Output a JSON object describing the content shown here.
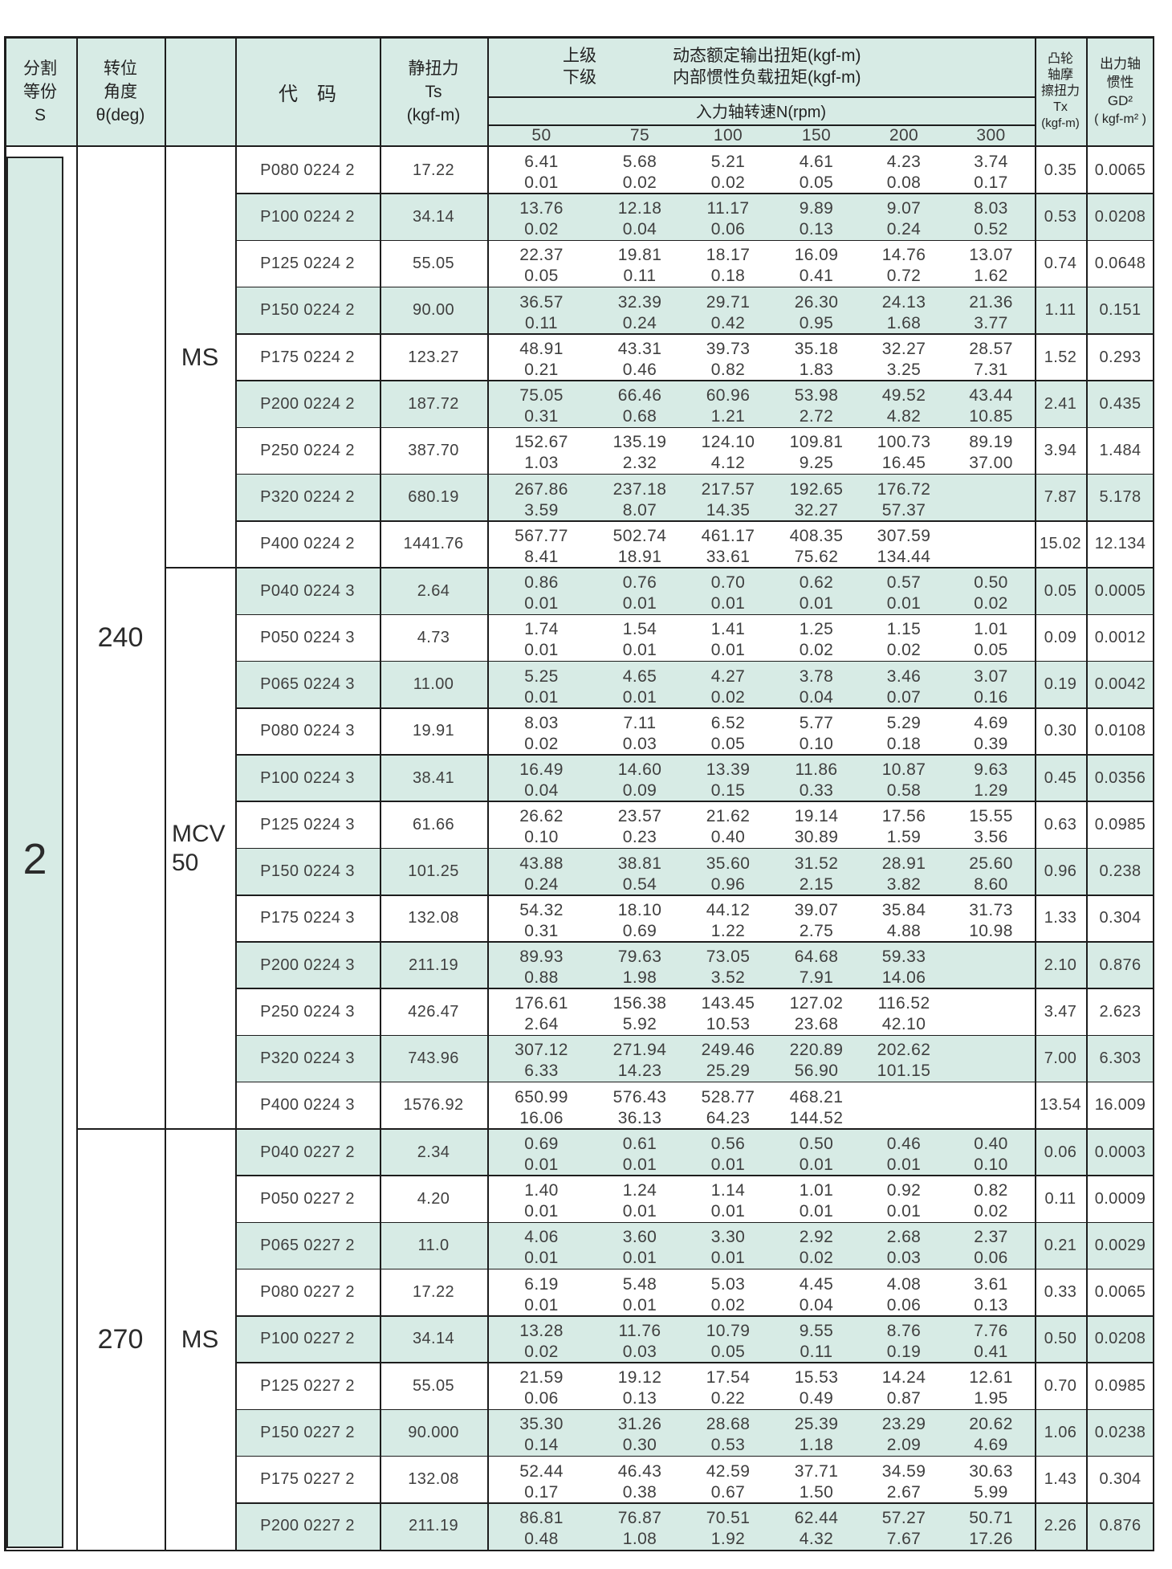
{
  "header": {
    "division_label_lines": [
      "分割",
      "等份",
      "S"
    ],
    "angle_label_lines": [
      "转位",
      "角度",
      "θ(deg)"
    ],
    "code_label": "代　码",
    "static_torque_lines": [
      "静扭力",
      "Ts",
      "(kgf-m)"
    ],
    "upper_label": "上级",
    "lower_label": "下级",
    "dynamic_torque_line1": "动态额定输出扭矩(kgf-m)",
    "dynamic_torque_line2": "内部惯性负载扭矩(kgf-m)",
    "input_speed_label": "入力轴转速N(rpm)",
    "speeds": [
      "50",
      "75",
      "100",
      "150",
      "200",
      "300"
    ],
    "cam_friction_lines": [
      "凸轮",
      "轴摩",
      "擦扭力",
      "Tx",
      "(kgf-m)"
    ],
    "output_inertia_lines": [
      "出力轴",
      "惯性",
      "GD²",
      "( kgf-m² )"
    ]
  },
  "left": {
    "division_value": "2",
    "angle_groups": [
      {
        "angle": "240"
      },
      {
        "angle": "270"
      }
    ],
    "type_groups": [
      {
        "label": "MS"
      },
      {
        "label_lines": [
          "MCV",
          "50"
        ]
      },
      {
        "label": "MS"
      }
    ]
  },
  "rows": [
    {
      "code": "P080 0224 2",
      "ts": "17.22",
      "values": [
        [
          "6.41",
          "0.01"
        ],
        [
          "5.68",
          "0.02"
        ],
        [
          "5.21",
          "0.02"
        ],
        [
          "4.61",
          "0.05"
        ],
        [
          "4.23",
          "0.08"
        ],
        [
          "3.74",
          "0.17"
        ]
      ],
      "tx": "0.35",
      "gd": "0.0065"
    },
    {
      "code": "P100 0224 2",
      "ts": "34.14",
      "values": [
        [
          "13.76",
          "0.02"
        ],
        [
          "12.18",
          "0.04"
        ],
        [
          "11.17",
          "0.06"
        ],
        [
          "9.89",
          "0.13"
        ],
        [
          "9.07",
          "0.24"
        ],
        [
          "8.03",
          "0.52"
        ]
      ],
      "tx": "0.53",
      "gd": "0.0208"
    },
    {
      "code": "P125 0224 2",
      "ts": "55.05",
      "values": [
        [
          "22.37",
          "0.05"
        ],
        [
          "19.81",
          "0.11"
        ],
        [
          "18.17",
          "0.18"
        ],
        [
          "16.09",
          "0.41"
        ],
        [
          "14.76",
          "0.72"
        ],
        [
          "13.07",
          "1.62"
        ]
      ],
      "tx": "0.74",
      "gd": "0.0648"
    },
    {
      "code": "P150 0224 2",
      "ts": "90.00",
      "values": [
        [
          "36.57",
          "0.11"
        ],
        [
          "32.39",
          "0.24"
        ],
        [
          "29.71",
          "0.42"
        ],
        [
          "26.30",
          "0.95"
        ],
        [
          "24.13",
          "1.68"
        ],
        [
          "21.36",
          "3.77"
        ]
      ],
      "tx": "1.11",
      "gd": "0.151"
    },
    {
      "code": "P175 0224 2",
      "ts": "123.27",
      "values": [
        [
          "48.91",
          "0.21"
        ],
        [
          "43.31",
          "0.46"
        ],
        [
          "39.73",
          "0.82"
        ],
        [
          "35.18",
          "1.83"
        ],
        [
          "32.27",
          "3.25"
        ],
        [
          "28.57",
          "7.31"
        ]
      ],
      "tx": "1.52",
      "gd": "0.293"
    },
    {
      "code": "P200 0224 2",
      "ts": "187.72",
      "values": [
        [
          "75.05",
          "0.31"
        ],
        [
          "66.46",
          "0.68"
        ],
        [
          "60.96",
          "1.21"
        ],
        [
          "53.98",
          "2.72"
        ],
        [
          "49.52",
          "4.82"
        ],
        [
          "43.44",
          "10.85"
        ]
      ],
      "tx": "2.41",
      "gd": "0.435"
    },
    {
      "code": "P250 0224 2",
      "ts": "387.70",
      "values": [
        [
          "152.67",
          "1.03"
        ],
        [
          "135.19",
          "2.32"
        ],
        [
          "124.10",
          "4.12"
        ],
        [
          "109.81",
          "9.25"
        ],
        [
          "100.73",
          "16.45"
        ],
        [
          "89.19",
          "37.00"
        ]
      ],
      "tx": "3.94",
      "gd": "1.484"
    },
    {
      "code": "P320 0224 2",
      "ts": "680.19",
      "values": [
        [
          "267.86",
          "3.59"
        ],
        [
          "237.18",
          "8.07"
        ],
        [
          "217.57",
          "14.35"
        ],
        [
          "192.65",
          "32.27"
        ],
        [
          "176.72",
          "57.37"
        ],
        null
      ],
      "tx": "7.87",
      "gd": "5.178"
    },
    {
      "code": "P400 0224 2",
      "ts": "1441.76",
      "values": [
        [
          "567.77",
          "8.41"
        ],
        [
          "502.74",
          "18.91"
        ],
        [
          "461.17",
          "33.61"
        ],
        [
          "408.35",
          "75.62"
        ],
        [
          "307.59",
          "134.44"
        ],
        null
      ],
      "tx": "15.02",
      "gd": "12.134"
    },
    {
      "code": "P040 0224 3",
      "ts": "2.64",
      "values": [
        [
          "0.86",
          "0.01"
        ],
        [
          "0.76",
          "0.01"
        ],
        [
          "0.70",
          "0.01"
        ],
        [
          "0.62",
          "0.01"
        ],
        [
          "0.57",
          "0.01"
        ],
        [
          "0.50",
          "0.02"
        ]
      ],
      "tx": "0.05",
      "gd": "0.0005"
    },
    {
      "code": "P050 0224 3",
      "ts": "4.73",
      "values": [
        [
          "1.74",
          "0.01"
        ],
        [
          "1.54",
          "0.01"
        ],
        [
          "1.41",
          "0.01"
        ],
        [
          "1.25",
          "0.02"
        ],
        [
          "1.15",
          "0.02"
        ],
        [
          "1.01",
          "0.05"
        ]
      ],
      "tx": "0.09",
      "gd": "0.0012"
    },
    {
      "code": "P065 0224 3",
      "ts": "11.00",
      "values": [
        [
          "5.25",
          "0.01"
        ],
        [
          "4.65",
          "0.01"
        ],
        [
          "4.27",
          "0.02"
        ],
        [
          "3.78",
          "0.04"
        ],
        [
          "3.46",
          "0.07"
        ],
        [
          "3.07",
          "0.16"
        ]
      ],
      "tx": "0.19",
      "gd": "0.0042"
    },
    {
      "code": "P080 0224 3",
      "ts": "19.91",
      "values": [
        [
          "8.03",
          "0.02"
        ],
        [
          "7.11",
          "0.03"
        ],
        [
          "6.52",
          "0.05"
        ],
        [
          "5.77",
          "0.10"
        ],
        [
          "5.29",
          "0.18"
        ],
        [
          "4.69",
          "0.39"
        ]
      ],
      "tx": "0.30",
      "gd": "0.0108"
    },
    {
      "code": "P100 0224 3",
      "ts": "38.41",
      "values": [
        [
          "16.49",
          "0.04"
        ],
        [
          "14.60",
          "0.09"
        ],
        [
          "13.39",
          "0.15"
        ],
        [
          "11.86",
          "0.33"
        ],
        [
          "10.87",
          "0.58"
        ],
        [
          "9.63",
          "1.29"
        ]
      ],
      "tx": "0.45",
      "gd": "0.0356"
    },
    {
      "code": "P125 0224 3",
      "ts": "61.66",
      "values": [
        [
          "26.62",
          "0.10"
        ],
        [
          "23.57",
          "0.23"
        ],
        [
          "21.62",
          "0.40"
        ],
        [
          "19.14",
          "30.89"
        ],
        [
          "17.56",
          "1.59"
        ],
        [
          "15.55",
          "3.56"
        ]
      ],
      "tx": "0.63",
      "gd": "0.0985"
    },
    {
      "code": "P150 0224 3",
      "ts": "101.25",
      "values": [
        [
          "43.88",
          "0.24"
        ],
        [
          "38.81",
          "0.54"
        ],
        [
          "35.60",
          "0.96"
        ],
        [
          "31.52",
          "2.15"
        ],
        [
          "28.91",
          "3.82"
        ],
        [
          "25.60",
          "8.60"
        ]
      ],
      "tx": "0.96",
      "gd": "0.238"
    },
    {
      "code": "P175 0224 3",
      "ts": "132.08",
      "values": [
        [
          "54.32",
          "0.31"
        ],
        [
          "18.10",
          "0.69"
        ],
        [
          "44.12",
          "1.22"
        ],
        [
          "39.07",
          "2.75"
        ],
        [
          "35.84",
          "4.88"
        ],
        [
          "31.73",
          "10.98"
        ]
      ],
      "tx": "1.33",
      "gd": "0.304"
    },
    {
      "code": "P200 0224 3",
      "ts": "211.19",
      "values": [
        [
          "89.93",
          "0.88"
        ],
        [
          "79.63",
          "1.98"
        ],
        [
          "73.05",
          "3.52"
        ],
        [
          "64.68",
          "7.91"
        ],
        [
          "59.33",
          "14.06"
        ],
        null
      ],
      "tx": "2.10",
      "gd": "0.876"
    },
    {
      "code": "P250 0224 3",
      "ts": "426.47",
      "values": [
        [
          "176.61",
          "2.64"
        ],
        [
          "156.38",
          "5.92"
        ],
        [
          "143.45",
          "10.53"
        ],
        [
          "127.02",
          "23.68"
        ],
        [
          "116.52",
          "42.10"
        ],
        null
      ],
      "tx": "3.47",
      "gd": "2.623"
    },
    {
      "code": "P320 0224 3",
      "ts": "743.96",
      "values": [
        [
          "307.12",
          "6.33"
        ],
        [
          "271.94",
          "14.23"
        ],
        [
          "249.46",
          "25.29"
        ],
        [
          "220.89",
          "56.90"
        ],
        [
          "202.62",
          "101.15"
        ],
        null
      ],
      "tx": "7.00",
      "gd": "6.303"
    },
    {
      "code": "P400 0224 3",
      "ts": "1576.92",
      "values": [
        [
          "650.99",
          "16.06"
        ],
        [
          "576.43",
          "36.13"
        ],
        [
          "528.77",
          "64.23"
        ],
        [
          "468.21",
          "144.52"
        ],
        null,
        null
      ],
      "tx": "13.54",
      "gd": "16.009"
    },
    {
      "code": "P040 0227 2",
      "ts": "2.34",
      "values": [
        [
          "0.69",
          "0.01"
        ],
        [
          "0.61",
          "0.01"
        ],
        [
          "0.56",
          "0.01"
        ],
        [
          "0.50",
          "0.01"
        ],
        [
          "0.46",
          "0.01"
        ],
        [
          "0.40",
          "0.10"
        ]
      ],
      "tx": "0.06",
      "gd": "0.0003"
    },
    {
      "code": "P050 0227 2",
      "ts": "4.20",
      "values": [
        [
          "1.40",
          "0.01"
        ],
        [
          "1.24",
          "0.01"
        ],
        [
          "1.14",
          "0.01"
        ],
        [
          "1.01",
          "0.01"
        ],
        [
          "0.92",
          "0.01"
        ],
        [
          "0.82",
          "0.02"
        ]
      ],
      "tx": "0.11",
      "gd": "0.0009"
    },
    {
      "code": "P065 0227 2",
      "ts": "11.0",
      "values": [
        [
          "4.06",
          "0.01"
        ],
        [
          "3.60",
          "0.01"
        ],
        [
          "3.30",
          "0.01"
        ],
        [
          "2.92",
          "0.02"
        ],
        [
          "2.68",
          "0.03"
        ],
        [
          "2.37",
          "0.06"
        ]
      ],
      "tx": "0.21",
      "gd": "0.0029"
    },
    {
      "code": "P080 0227 2",
      "ts": "17.22",
      "values": [
        [
          "6.19",
          "0.01"
        ],
        [
          "5.48",
          "0.01"
        ],
        [
          "5.03",
          "0.02"
        ],
        [
          "4.45",
          "0.04"
        ],
        [
          "4.08",
          "0.06"
        ],
        [
          "3.61",
          "0.13"
        ]
      ],
      "tx": "0.33",
      "gd": "0.0065"
    },
    {
      "code": "P100 0227 2",
      "ts": "34.14",
      "values": [
        [
          "13.28",
          "0.02"
        ],
        [
          "11.76",
          "0.03"
        ],
        [
          "10.79",
          "0.05"
        ],
        [
          "9.55",
          "0.11"
        ],
        [
          "8.76",
          "0.19"
        ],
        [
          "7.76",
          "0.41"
        ]
      ],
      "tx": "0.50",
      "gd": "0.0208"
    },
    {
      "code": "P125 0227 2",
      "ts": "55.05",
      "values": [
        [
          "21.59",
          "0.06"
        ],
        [
          "19.12",
          "0.13"
        ],
        [
          "17.54",
          "0.22"
        ],
        [
          "15.53",
          "0.49"
        ],
        [
          "14.24",
          "0.87"
        ],
        [
          "12.61",
          "1.95"
        ]
      ],
      "tx": "0.70",
      "gd": "0.0985"
    },
    {
      "code": "P150 0227 2",
      "ts": "90.000",
      "values": [
        [
          "35.30",
          "0.14"
        ],
        [
          "31.26",
          "0.30"
        ],
        [
          "28.68",
          "0.53"
        ],
        [
          "25.39",
          "1.18"
        ],
        [
          "23.29",
          "2.09"
        ],
        [
          "20.62",
          "4.69"
        ]
      ],
      "tx": "1.06",
      "gd": "0.0238"
    },
    {
      "code": "P175 0227 2",
      "ts": "132.08",
      "values": [
        [
          "52.44",
          "0.17"
        ],
        [
          "46.43",
          "0.38"
        ],
        [
          "42.59",
          "0.67"
        ],
        [
          "37.71",
          "1.50"
        ],
        [
          "34.59",
          "2.67"
        ],
        [
          "30.63",
          "5.99"
        ]
      ],
      "tx": "1.43",
      "gd": "0.304"
    },
    {
      "code": "P200 0227 2",
      "ts": "211.19",
      "values": [
        [
          "86.81",
          "0.48"
        ],
        [
          "76.87",
          "1.08"
        ],
        [
          "70.51",
          "1.92"
        ],
        [
          "62.44",
          "4.32"
        ],
        [
          "57.27",
          "7.67"
        ],
        [
          "50.71",
          "17.26"
        ]
      ],
      "tx": "2.26",
      "gd": "0.876"
    }
  ]
}
